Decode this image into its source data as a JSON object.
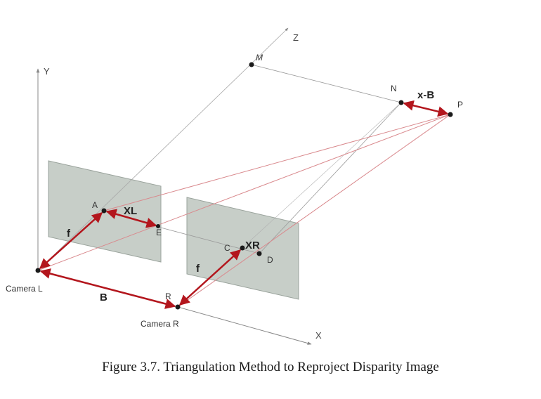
{
  "diagram": {
    "axes": {
      "x": "X",
      "y": "Y",
      "z": "Z"
    },
    "points": {
      "M": "M",
      "N": "N",
      "P": "P",
      "A": "A",
      "E": "E",
      "C": "C",
      "D": "D",
      "R": "R"
    },
    "labels": {
      "xl": "XL",
      "xr": "XR",
      "x_minus_b": "x-B",
      "f_left": "f",
      "f_right": "f",
      "baseline": "B",
      "camera_l": "Camera L",
      "camera_r": "Camera R"
    },
    "colors": {
      "arrow": "#b3161d",
      "ray": "#d9898d",
      "guide": "#9a9a9a",
      "plane": "#c7cec8",
      "point": "#1a1a1a"
    }
  },
  "caption": "Figure 3.7.  Triangulation Method to Reproject Disparity Image"
}
